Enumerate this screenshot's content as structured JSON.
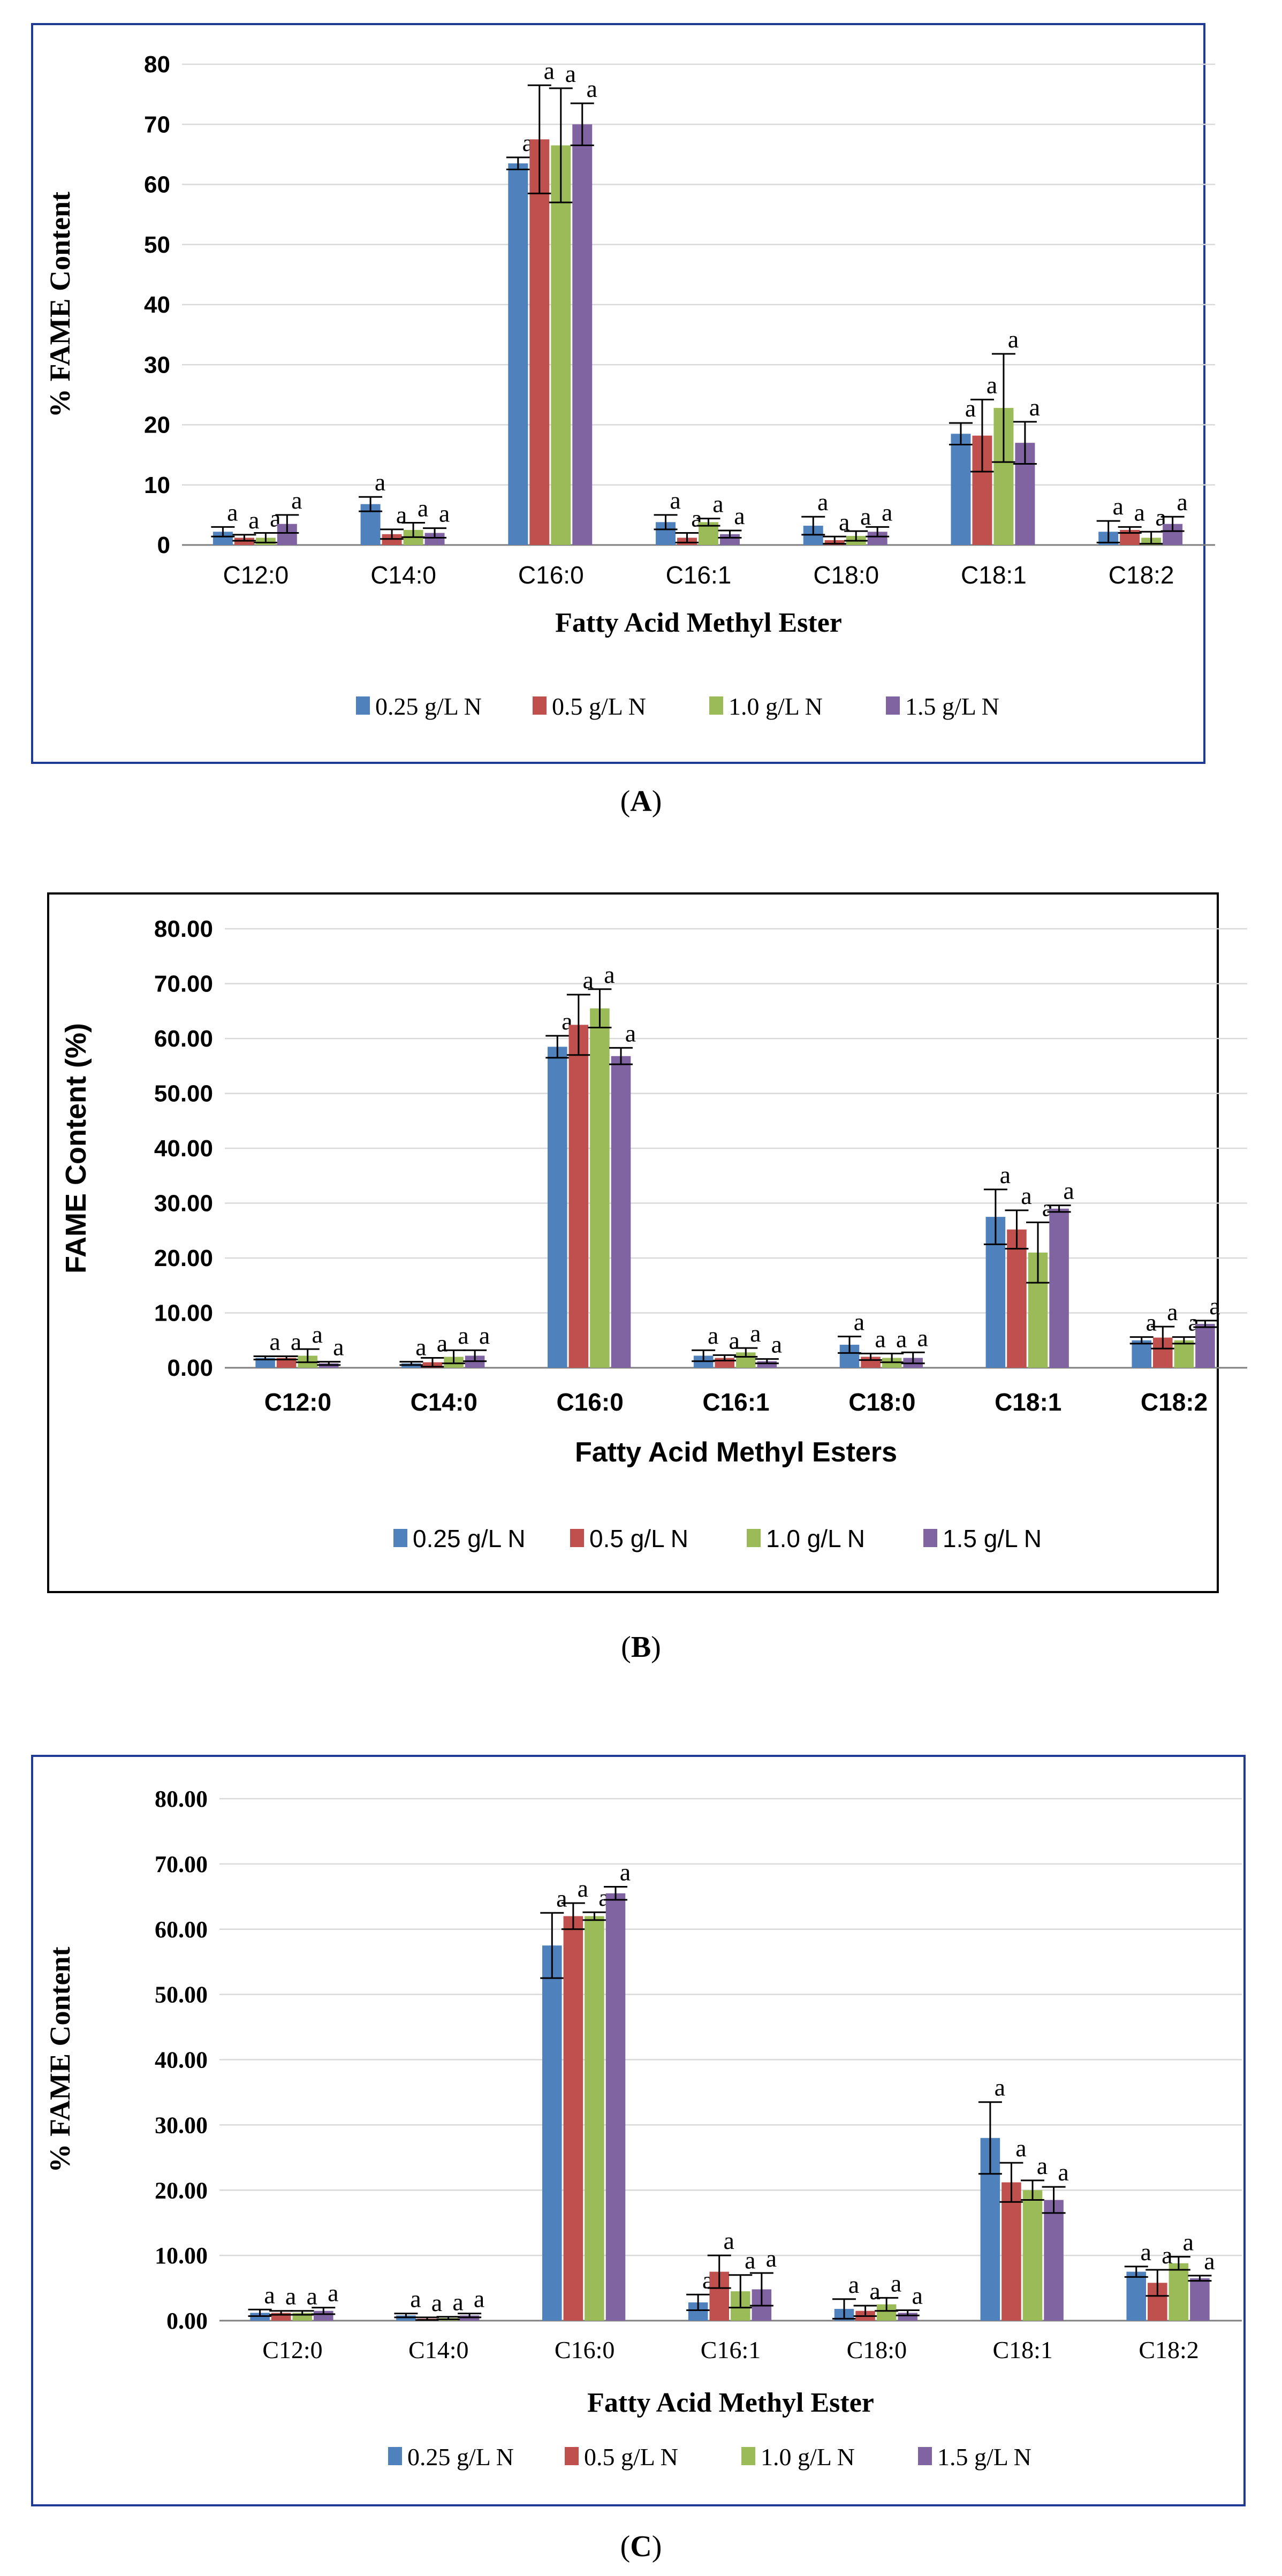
{
  "figure": {
    "panels": [
      {
        "caption_letter": "A",
        "caption_open": "(",
        "caption_close": ")"
      },
      {
        "caption_letter": "B",
        "caption_open": "(",
        "caption_close": ")"
      },
      {
        "caption_letter": "C",
        "caption_open": "(",
        "caption_close": ")"
      }
    ]
  },
  "colors": {
    "series": [
      "#4F81BD",
      "#C0504D",
      "#9BBB59",
      "#8064A2"
    ],
    "grid": "#D9D9D9",
    "axis": "#7F7F7F",
    "frameA": "#1F3A93",
    "frameB": "#000000",
    "frameC": "#1F3A93"
  },
  "chart_data": [
    {
      "type": "bar",
      "title": "",
      "xlabel": "Fatty Acid Methyl Ester",
      "ylabel": "% FAME Content",
      "ylim": [
        0,
        80
      ],
      "yticks": [
        "0",
        "10",
        "20",
        "30",
        "40",
        "50",
        "60",
        "70",
        "80"
      ],
      "categories": [
        "C12:0",
        "C14:0",
        "C16:0",
        "C16:1",
        "C18:0",
        "C18:1",
        "C18:2"
      ],
      "series": [
        {
          "name": "0.25 g/L N",
          "values": [
            2.2,
            6.8,
            63.5,
            3.8,
            3.2,
            18.5,
            2.2
          ],
          "errors": [
            0.8,
            1.2,
            1.0,
            1.2,
            1.5,
            1.8,
            1.8
          ],
          "labels": [
            "a",
            "a",
            "a",
            "a",
            "a",
            "a",
            "a"
          ]
        },
        {
          "name": "0.5 g/L N",
          "values": [
            1.2,
            1.8,
            67.5,
            1.2,
            0.8,
            18.2,
            2.5
          ],
          "errors": [
            0.5,
            0.8,
            9.0,
            0.8,
            0.6,
            6.0,
            0.5
          ],
          "labels": [
            "a",
            "a",
            "a",
            "a",
            "a",
            "a",
            "a"
          ]
        },
        {
          "name": "1.0 g/L N",
          "values": [
            1.2,
            2.5,
            66.5,
            3.8,
            1.5,
            22.8,
            1.2
          ],
          "errors": [
            0.8,
            1.2,
            9.5,
            0.6,
            0.8,
            9.0,
            1.0
          ],
          "labels": [
            "a",
            "a",
            "a",
            "a",
            "a",
            "a",
            "a"
          ]
        },
        {
          "name": "1.5 g/L N",
          "values": [
            3.5,
            2.0,
            70.0,
            1.8,
            2.2,
            17.0,
            3.5
          ],
          "errors": [
            1.5,
            0.8,
            3.5,
            0.6,
            0.8,
            3.5,
            1.2
          ],
          "labels": [
            "a",
            "a",
            "a",
            "a",
            "a",
            "a",
            "a"
          ]
        }
      ],
      "label_prefix_on_first": true,
      "legend_position": "bottom"
    },
    {
      "type": "bar",
      "title": "",
      "xlabel": "Fatty Acid Methyl Esters",
      "ylabel": "FAME Content (%)",
      "ylim": [
        0,
        80
      ],
      "yticks": [
        "0.00",
        "10.00",
        "20.00",
        "30.00",
        "40.00",
        "50.00",
        "60.00",
        "70.00",
        "80.00"
      ],
      "categories": [
        "C12:0",
        "C14:0",
        "C16:0",
        "C16:1",
        "C18:0",
        "C18:1",
        "C18:2"
      ],
      "series": [
        {
          "name": "0.25 g/L N",
          "values": [
            1.8,
            0.8,
            58.5,
            2.2,
            4.2,
            27.5,
            5.0
          ],
          "errors": [
            0.3,
            0.3,
            2.0,
            1.0,
            1.5,
            5.0,
            0.6
          ],
          "labels": [
            "a",
            "a",
            "a",
            "a",
            "a",
            "a",
            "a"
          ]
        },
        {
          "name": "0.5 g/L N",
          "values": [
            1.8,
            1.0,
            62.5,
            1.8,
            2.0,
            25.2,
            5.5
          ],
          "errors": [
            0.3,
            0.8,
            5.5,
            0.5,
            0.6,
            3.5,
            2.0
          ],
          "labels": [
            "a",
            "a",
            "a",
            "a",
            "a",
            "a",
            "a"
          ]
        },
        {
          "name": "1.0 g/L N",
          "values": [
            2.2,
            2.0,
            65.5,
            2.8,
            1.8,
            21.0,
            5.0
          ],
          "errors": [
            1.2,
            1.2,
            3.5,
            0.8,
            0.8,
            5.5,
            0.6
          ],
          "labels": [
            "a",
            "a",
            "a",
            "a",
            "a",
            "a",
            "a"
          ]
        },
        {
          "name": "1.5 g/L N",
          "values": [
            0.8,
            2.2,
            56.8,
            1.2,
            1.8,
            29.0,
            8.0
          ],
          "errors": [
            0.3,
            1.0,
            1.5,
            0.4,
            1.0,
            0.6,
            0.6
          ],
          "labels": [
            "a",
            "a",
            "a",
            "a",
            "a",
            "a",
            "a"
          ]
        }
      ],
      "label_prefix_on_first": false,
      "legend_position": "bottom"
    },
    {
      "type": "bar",
      "title": "",
      "xlabel": "Fatty Acid Methyl Ester",
      "ylabel": "% FAME Content",
      "ylim": [
        0,
        80
      ],
      "yticks": [
        "0.00",
        "10.00",
        "20.00",
        "30.00",
        "40.00",
        "50.00",
        "60.00",
        "70.00",
        "80.00"
      ],
      "categories": [
        "C12:0",
        "C14:0",
        "C16:0",
        "C16:1",
        "C18:0",
        "C18:1",
        "C18:2"
      ],
      "series": [
        {
          "name": "0.25 g/L N",
          "values": [
            1.2,
            0.8,
            57.5,
            2.8,
            1.8,
            28.0,
            7.5
          ],
          "errors": [
            0.5,
            0.3,
            5.0,
            1.2,
            1.5,
            5.5,
            0.8
          ],
          "labels": [
            "a",
            "a",
            "a",
            "a",
            "a",
            "a",
            "a"
          ]
        },
        {
          "name": "0.5 g/L N",
          "values": [
            1.2,
            0.3,
            62.0,
            7.5,
            1.5,
            21.2,
            5.8
          ],
          "errors": [
            0.3,
            0.2,
            2.0,
            2.5,
            0.8,
            3.0,
            2.0
          ],
          "labels": [
            "a",
            "a",
            "a",
            "a",
            "a",
            "a",
            "a"
          ]
        },
        {
          "name": "1.0 g/L N",
          "values": [
            1.2,
            0.4,
            62.0,
            4.5,
            2.5,
            20.0,
            8.8
          ],
          "errors": [
            0.3,
            0.2,
            0.6,
            2.5,
            1.0,
            1.5,
            1.0
          ],
          "labels": [
            "a",
            "a",
            "a",
            "a",
            "a",
            "a",
            "a"
          ]
        },
        {
          "name": "1.5 g/L N",
          "values": [
            1.5,
            0.8,
            65.5,
            4.8,
            1.2,
            18.5,
            6.5
          ],
          "errors": [
            0.5,
            0.3,
            1.0,
            2.5,
            0.4,
            2.0,
            0.4
          ],
          "labels": [
            "a",
            "a",
            "a",
            "a",
            "a",
            "a",
            "a"
          ]
        }
      ],
      "label_prefix_on_first": false,
      "legend_position": "bottom"
    }
  ]
}
